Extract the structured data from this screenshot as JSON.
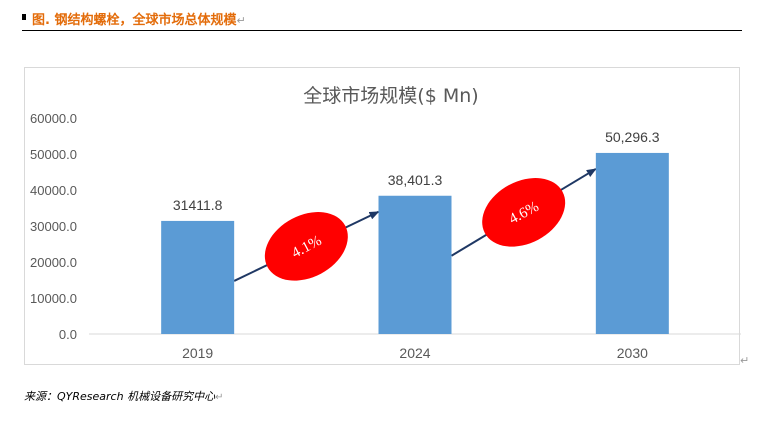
{
  "heading": {
    "text": "图.  钢结构螺栓，全球市场总体规模",
    "color": "#E36C0A"
  },
  "source": {
    "text": "来源：QYResearch 机械设备研究中心"
  },
  "chart_data": {
    "type": "bar",
    "title": "全球市场规模($ Mn)",
    "categories": [
      "2019",
      "2024",
      "2030"
    ],
    "values": [
      31411.8,
      38401.3,
      50296.3
    ],
    "data_labels": [
      "31411.8",
      "38,401.3",
      "50,296.3"
    ],
    "y_ticks": [
      "0.0",
      "10000.0",
      "20000.0",
      "30000.0",
      "40000.0",
      "50000.0",
      "60000.0"
    ],
    "ylim": [
      0,
      60000
    ],
    "bar_color": "#5B9BD5",
    "grid": false,
    "legend": "none",
    "growth": [
      {
        "label": "4.1%",
        "from": "2019",
        "to": "2024"
      },
      {
        "label": "4.6%",
        "from": "2024",
        "to": "2030"
      }
    ],
    "growth_color": "#FF0000",
    "arrow_color": "#1F3864"
  }
}
